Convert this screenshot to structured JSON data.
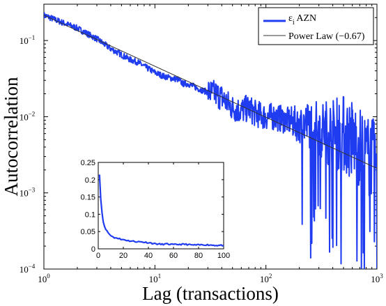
{
  "chart_data": [
    {
      "type": "line",
      "xlabel": "Lag (transactions)",
      "ylabel": "Autocorrelation",
      "xscale": "log",
      "yscale": "log",
      "xlim": [
        1,
        1000
      ],
      "ylim": [
        0.0001,
        0.3
      ],
      "xticks": [
        {
          "value": 1,
          "base": "10",
          "exp": "0"
        },
        {
          "value": 10,
          "base": "10",
          "exp": "1"
        },
        {
          "value": 100,
          "base": "10",
          "exp": "2"
        },
        {
          "value": 1000,
          "base": "10",
          "exp": "3"
        }
      ],
      "yticks": [
        {
          "value": 0.0001,
          "base": "10",
          "exp": "−4"
        },
        {
          "value": 0.001,
          "base": "10",
          "exp": "−3"
        },
        {
          "value": 0.01,
          "base": "10",
          "exp": "−2"
        },
        {
          "value": 0.1,
          "base": "10",
          "exp": "−1"
        }
      ],
      "legend_position": "top-right",
      "series": [
        {
          "name": "εi AZN",
          "name_main": "ε",
          "name_sub": "i",
          "name_rest": " AZN",
          "color": "#1f3cf0",
          "x": [
            1,
            1.5,
            2,
            3,
            4,
            5,
            6,
            7,
            8,
            10,
            12,
            14,
            16,
            18,
            20,
            25,
            30,
            35,
            40,
            45,
            50,
            60,
            70,
            80,
            100,
            120,
            150,
            200,
            250,
            300,
            400,
            500,
            600,
            700,
            800,
            900,
            1000
          ],
          "y": [
            0.215,
            0.17,
            0.145,
            0.105,
            0.078,
            0.065,
            0.056,
            0.052,
            0.046,
            0.038,
            0.034,
            0.032,
            0.031,
            0.027,
            0.027,
            0.023,
            0.021,
            0.02,
            0.018,
            0.015,
            0.013,
            0.012,
            0.013,
            0.011,
            0.01,
            0.01,
            0.009,
            0.008,
            0.008,
            0.007,
            0.006,
            0.006,
            0.005,
            0.004,
            0.003,
            0.003,
            0.002
          ],
          "noise_note": ""
        },
        {
          "name": "Power Law (−0.67)",
          "color": "#333333",
          "exponent": -0.67,
          "amplitude": 0.215,
          "x": [
            1,
            1000
          ],
          "y": [
            0.215,
            0.0021
          ]
        }
      ]
    },
    {
      "type": "line",
      "xscale": "linear",
      "yscale": "linear",
      "xlim": [
        0,
        100
      ],
      "ylim": [
        0,
        0.25
      ],
      "xticks": [
        "0",
        "20",
        "40",
        "60",
        "80",
        "100"
      ],
      "xtick_values": [
        0,
        20,
        40,
        60,
        80,
        100
      ],
      "yticks": [
        "0",
        "0.05",
        "0.1",
        "0.15",
        "0.2",
        "0.25"
      ],
      "ytick_values": [
        0,
        0.05,
        0.1,
        0.15,
        0.2,
        0.25
      ],
      "series": [
        {
          "name": "",
          "color": "#1f3cf0",
          "x": [
            1,
            2,
            3,
            4,
            5,
            6,
            7,
            8,
            10,
            12,
            14,
            16,
            18,
            20,
            25,
            30,
            35,
            40,
            45,
            50,
            55,
            60,
            65,
            70,
            75,
            80,
            85,
            90,
            95,
            100
          ],
          "y": [
            0.215,
            0.145,
            0.105,
            0.078,
            0.065,
            0.056,
            0.052,
            0.046,
            0.038,
            0.034,
            0.032,
            0.031,
            0.027,
            0.027,
            0.023,
            0.021,
            0.02,
            0.018,
            0.015,
            0.013,
            0.014,
            0.012,
            0.013,
            0.013,
            0.011,
            0.011,
            0.012,
            0.011,
            0.01,
            0.01
          ]
        }
      ]
    }
  ]
}
